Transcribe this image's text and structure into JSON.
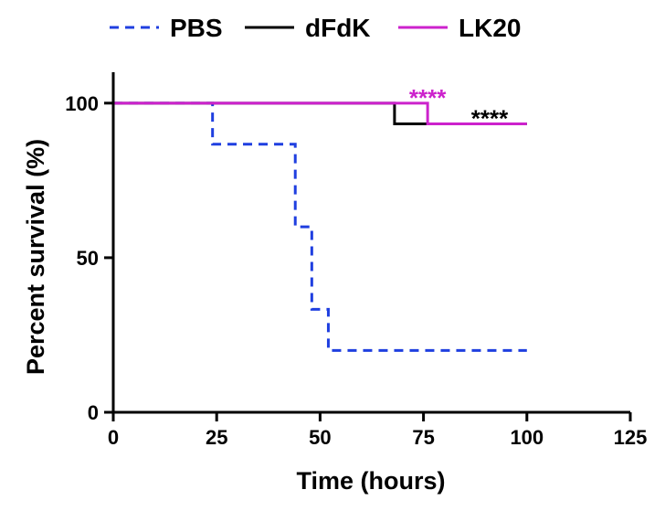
{
  "chart_data": {
    "type": "line",
    "xlabel": "Time (hours)",
    "ylabel": "Percent survival (%)",
    "xlim": [
      0,
      125
    ],
    "ylim": [
      0,
      110
    ],
    "x_ticks": [
      0,
      25,
      50,
      75,
      100,
      125
    ],
    "y_ticks": [
      0,
      50,
      100
    ],
    "legend_position": "top",
    "legend": [
      "PBS",
      "dFdK",
      "LK20"
    ],
    "series": [
      {
        "name": "PBS",
        "color": "#1f3fe0",
        "dash": "dashed",
        "x": [
          0,
          24,
          44,
          48,
          52,
          100
        ],
        "y": [
          100,
          86.7,
          60,
          33.3,
          20,
          20
        ]
      },
      {
        "name": "dFdK",
        "color": "#000000",
        "dash": "solid",
        "x": [
          0,
          68,
          100
        ],
        "y": [
          100,
          93.3,
          93.3
        ]
      },
      {
        "name": "LK20",
        "color": "#cc22cc",
        "dash": "solid",
        "x": [
          0,
          76,
          100
        ],
        "y": [
          100,
          93.3,
          93.3
        ]
      }
    ],
    "annotations": [
      {
        "text": "****",
        "color": "#cc22cc",
        "x": 76,
        "y": 100
      },
      {
        "text": "****",
        "color": "#000000",
        "x": 91,
        "y": 93.3
      }
    ]
  }
}
